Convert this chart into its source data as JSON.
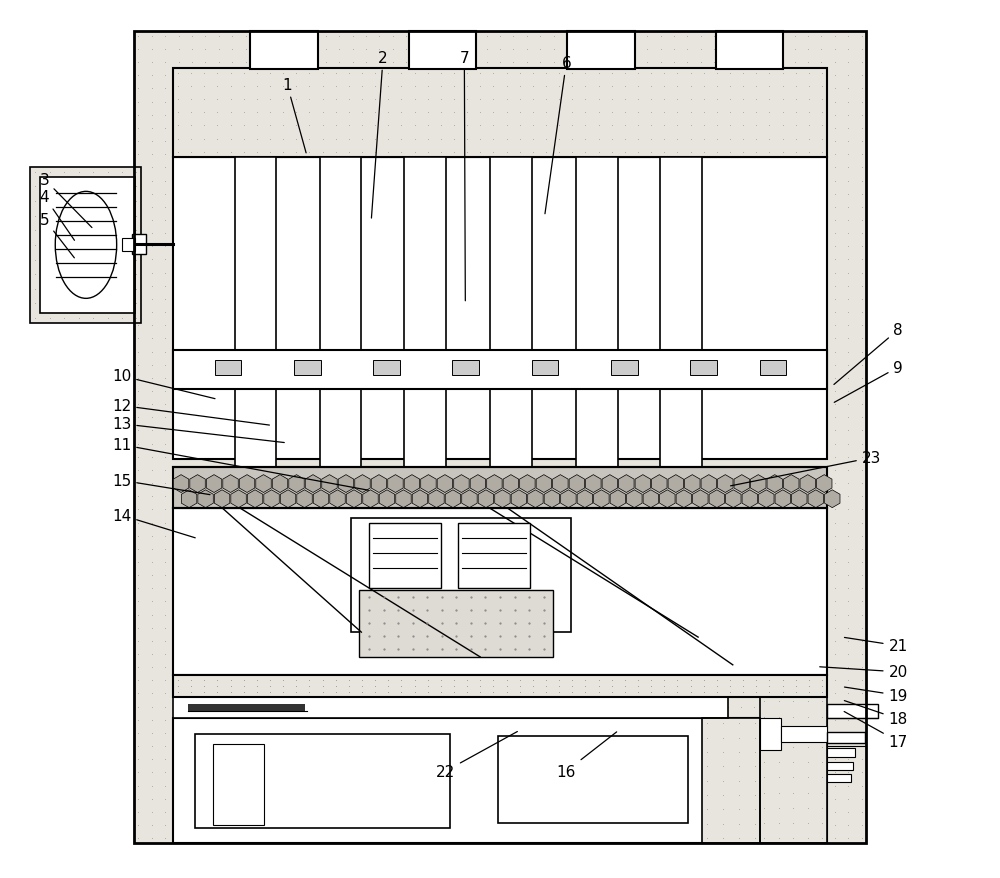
{
  "fig_width": 10.0,
  "fig_height": 8.79,
  "bg": "#ffffff",
  "lc": "#000000",
  "dot_bg": "#e8e4de",
  "dot_color": "#aaaaaa",
  "mesh_color": "#c8c4be",
  "labels": [
    [
      1,
      0.285,
      0.093,
      0.305,
      0.175
    ],
    [
      2,
      0.382,
      0.062,
      0.37,
      0.25
    ],
    [
      3,
      0.04,
      0.202,
      0.09,
      0.26
    ],
    [
      4,
      0.04,
      0.222,
      0.072,
      0.275
    ],
    [
      5,
      0.04,
      0.248,
      0.072,
      0.295
    ],
    [
      6,
      0.567,
      0.068,
      0.545,
      0.245
    ],
    [
      7,
      0.464,
      0.062,
      0.465,
      0.345
    ],
    [
      8,
      0.902,
      0.375,
      0.835,
      0.44
    ],
    [
      9,
      0.902,
      0.418,
      0.835,
      0.46
    ],
    [
      10,
      0.118,
      0.428,
      0.215,
      0.455
    ],
    [
      11,
      0.118,
      0.507,
      0.37,
      0.56
    ],
    [
      12,
      0.118,
      0.462,
      0.27,
      0.485
    ],
    [
      13,
      0.118,
      0.483,
      0.285,
      0.505
    ],
    [
      14,
      0.118,
      0.588,
      0.195,
      0.615
    ],
    [
      15,
      0.118,
      0.548,
      0.21,
      0.565
    ],
    [
      16,
      0.567,
      0.882,
      0.62,
      0.835
    ],
    [
      17,
      0.902,
      0.848,
      0.845,
      0.812
    ],
    [
      18,
      0.902,
      0.822,
      0.845,
      0.8
    ],
    [
      19,
      0.902,
      0.795,
      0.845,
      0.785
    ],
    [
      20,
      0.902,
      0.768,
      0.82,
      0.762
    ],
    [
      21,
      0.902,
      0.738,
      0.845,
      0.728
    ],
    [
      22,
      0.445,
      0.882,
      0.52,
      0.835
    ],
    [
      23,
      0.875,
      0.522,
      0.73,
      0.555
    ]
  ]
}
